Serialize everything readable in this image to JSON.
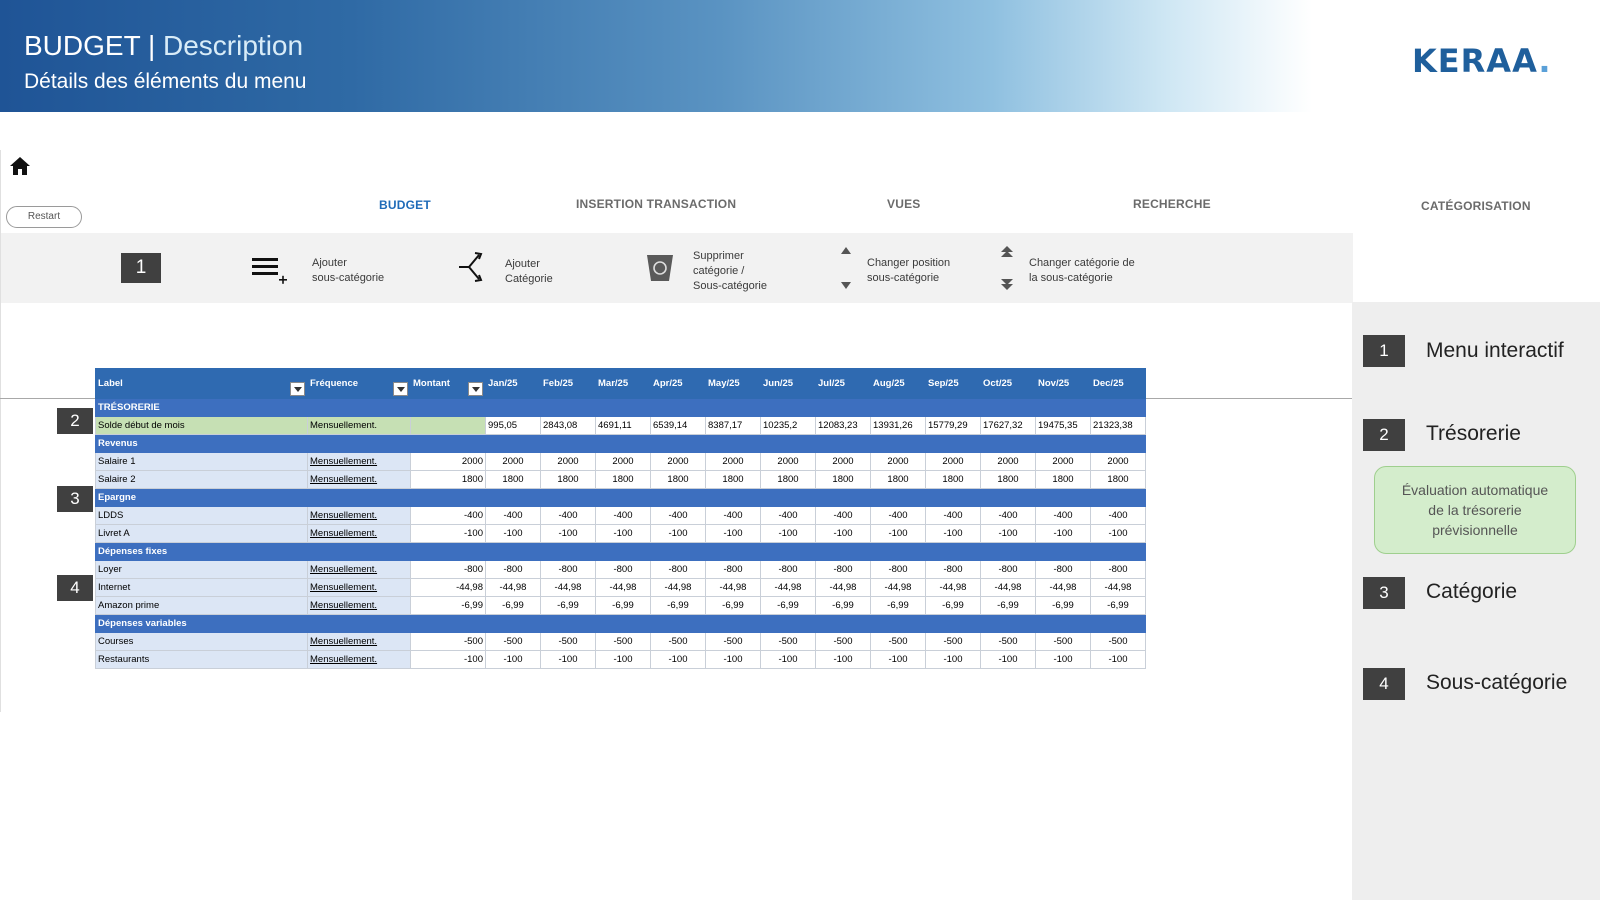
{
  "header": {
    "title_main": "BUDGET | ",
    "title_accent": "Description",
    "subtitle": "Détails des éléments du menu",
    "logo": "KERAA",
    "logo_dot": "."
  },
  "app": {
    "restart_label": "Restart",
    "nav": [
      "BUDGET",
      "INSERTION TRANSACTION",
      "VUES",
      "RECHERCHE",
      "CATÉGORISATION"
    ],
    "active_tab": "BUDGET",
    "toolbar_badge": "1",
    "toolbar": {
      "add_sub_l1": "Ajouter",
      "add_sub_l2": "sous-catégorie",
      "add_cat_l1": "Ajouter",
      "add_cat_l2": "Catégorie",
      "del_l1": "Supprimer",
      "del_l2": "catégorie /",
      "del_l3": "Sous-catégorie",
      "move_l1": "Changer position",
      "move_l2": "sous-catégorie",
      "chg_l1": "Changer catégorie de",
      "chg_l2": "la sous-catégorie"
    }
  },
  "table": {
    "headers": [
      "Label",
      "Fréquence",
      "Montant",
      "Jan/25",
      "Feb/25",
      "Mar/25",
      "Apr/25",
      "May/25",
      "Jun/25",
      "Jul/25",
      "Aug/25",
      "Sep/25",
      "Oct/25",
      "Nov/25",
      "Dec/25"
    ],
    "rows": [
      {
        "type": "sec",
        "label": "TRÉSORERIE"
      },
      {
        "type": "solde",
        "label": "Solde début de mois",
        "freq": "Mensuellement.",
        "amount": "",
        "months": [
          "995,05",
          "2843,08",
          "4691,11",
          "6539,14",
          "8387,17",
          "10235,2",
          "12083,23",
          "13931,26",
          "15779,29",
          "17627,32",
          "19475,35",
          "21323,38"
        ]
      },
      {
        "type": "sec",
        "label": "Revenus"
      },
      {
        "type": "row",
        "label": "Salaire 1",
        "freq": "Mensuellement.",
        "amount": "2000",
        "months": [
          "2000",
          "2000",
          "2000",
          "2000",
          "2000",
          "2000",
          "2000",
          "2000",
          "2000",
          "2000",
          "2000",
          "2000"
        ]
      },
      {
        "type": "row",
        "label": "Salaire 2",
        "freq": "Mensuellement.",
        "amount": "1800",
        "months": [
          "1800",
          "1800",
          "1800",
          "1800",
          "1800",
          "1800",
          "1800",
          "1800",
          "1800",
          "1800",
          "1800",
          "1800"
        ]
      },
      {
        "type": "sec",
        "label": "Epargne"
      },
      {
        "type": "row",
        "label": "LDDS",
        "freq": "Mensuellement.",
        "amount": "-400",
        "months": [
          "-400",
          "-400",
          "-400",
          "-400",
          "-400",
          "-400",
          "-400",
          "-400",
          "-400",
          "-400",
          "-400",
          "-400"
        ]
      },
      {
        "type": "row",
        "label": "Livret A",
        "freq": "Mensuellement.",
        "amount": "-100",
        "months": [
          "-100",
          "-100",
          "-100",
          "-100",
          "-100",
          "-100",
          "-100",
          "-100",
          "-100",
          "-100",
          "-100",
          "-100"
        ]
      },
      {
        "type": "sec",
        "label": "Dépenses fixes"
      },
      {
        "type": "row",
        "label": "Loyer",
        "freq": "Mensuellement.",
        "amount": "-800",
        "months": [
          "-800",
          "-800",
          "-800",
          "-800",
          "-800",
          "-800",
          "-800",
          "-800",
          "-800",
          "-800",
          "-800",
          "-800"
        ]
      },
      {
        "type": "row",
        "label": "Internet",
        "freq": "Mensuellement.",
        "amount": "-44,98",
        "months": [
          "-44,98",
          "-44,98",
          "-44,98",
          "-44,98",
          "-44,98",
          "-44,98",
          "-44,98",
          "-44,98",
          "-44,98",
          "-44,98",
          "-44,98",
          "-44,98"
        ]
      },
      {
        "type": "row",
        "label": "Amazon prime",
        "freq": "Mensuellement.",
        "amount": "-6,99",
        "months": [
          "-6,99",
          "-6,99",
          "-6,99",
          "-6,99",
          "-6,99",
          "-6,99",
          "-6,99",
          "-6,99",
          "-6,99",
          "-6,99",
          "-6,99",
          "-6,99"
        ]
      },
      {
        "type": "sec",
        "label": "Dépenses variables"
      },
      {
        "type": "row",
        "label": "Courses",
        "freq": "Mensuellement.",
        "amount": "-500",
        "months": [
          "-500",
          "-500",
          "-500",
          "-500",
          "-500",
          "-500",
          "-500",
          "-500",
          "-500",
          "-500",
          "-500",
          "-500"
        ]
      },
      {
        "type": "row",
        "label": "Restaurants",
        "freq": "Mensuellement.",
        "amount": "-100",
        "months": [
          "-100",
          "-100",
          "-100",
          "-100",
          "-100",
          "-100",
          "-100",
          "-100",
          "-100",
          "-100",
          "-100",
          "-100"
        ]
      }
    ]
  },
  "markers": [
    "2",
    "3",
    "4"
  ],
  "legend": {
    "items": [
      {
        "num": "1",
        "label": "Menu interactif"
      },
      {
        "num": "2",
        "label": "Trésorerie"
      },
      {
        "num": "3",
        "label": "Catégorie"
      },
      {
        "num": "4",
        "label": "Sous-catégorie"
      }
    ],
    "callout_l1": "Évaluation automatique",
    "callout_l2": "de la trésorerie",
    "callout_l3": "prévisionnelle"
  },
  "colors": {
    "banner": "#1f5496",
    "header_row": "#2f6ab1",
    "section_row": "#3d6fbf",
    "solde_row": "#c6e0b4",
    "callout_bg": "#d4edcc",
    "badge": "#404040"
  },
  "icons": [
    "home-icon",
    "add-subcategory-icon",
    "add-category-icon",
    "delete-icon",
    "move-up-down-icon",
    "change-category-icon"
  ]
}
